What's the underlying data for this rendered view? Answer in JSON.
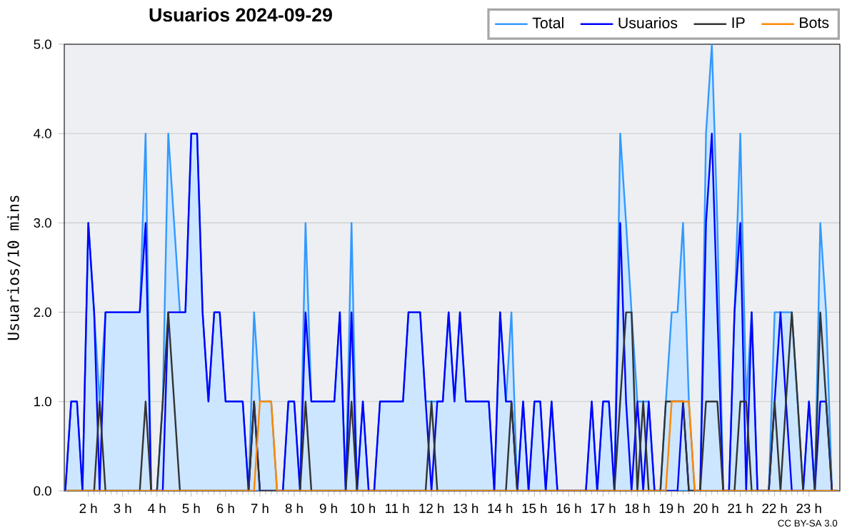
{
  "chart_data": {
    "type": "line",
    "title": "Usuarios  2024-09-29",
    "ylabel": "Usuarios/10 mins",
    "x": [
      1.33,
      1.5,
      1.67,
      1.83,
      2,
      2.17,
      2.33,
      2.5,
      2.67,
      2.83,
      3,
      3.17,
      3.33,
      3.5,
      3.67,
      3.83,
      4,
      4.17,
      4.33,
      4.5,
      4.67,
      4.83,
      5,
      5.17,
      5.33,
      5.5,
      5.67,
      5.83,
      6,
      6.17,
      6.33,
      6.5,
      6.67,
      6.83,
      7,
      7.17,
      7.33,
      7.5,
      7.67,
      7.83,
      8,
      8.17,
      8.33,
      8.5,
      8.67,
      8.83,
      9,
      9.17,
      9.33,
      9.5,
      9.67,
      9.83,
      10,
      10.17,
      10.33,
      10.5,
      10.67,
      10.83,
      11,
      11.17,
      11.33,
      11.5,
      11.67,
      11.83,
      12,
      12.17,
      12.33,
      12.5,
      12.67,
      12.83,
      13,
      13.17,
      13.33,
      13.5,
      13.67,
      13.83,
      14,
      14.17,
      14.33,
      14.5,
      14.67,
      14.83,
      15,
      15.17,
      15.33,
      15.5,
      15.67,
      15.83,
      16,
      16.17,
      16.33,
      16.5,
      16.67,
      16.83,
      17,
      17.17,
      17.33,
      17.5,
      17.67,
      17.83,
      18,
      18.17,
      18.33,
      18.5,
      18.67,
      18.83,
      19,
      19.17,
      19.33,
      19.5,
      19.67,
      19.83,
      20,
      20.17,
      20.33,
      20.5,
      20.67,
      20.83,
      21,
      21.17,
      21.33,
      21.5,
      21.67,
      21.83,
      22,
      22.17,
      22.33,
      22.5,
      22.67,
      22.83,
      23,
      23.17,
      23.33,
      23.5,
      23.67,
      23.83
    ],
    "series": [
      {
        "name": "Total",
        "type": "area",
        "color": "#3399ff",
        "values": [
          0,
          1,
          1,
          0,
          3,
          2,
          1,
          2,
          2,
          2,
          2,
          2,
          2,
          2,
          4,
          0,
          0,
          1,
          4,
          3,
          2,
          2,
          4,
          4,
          2,
          1,
          2,
          2,
          1,
          1,
          1,
          1,
          0,
          2,
          1,
          1,
          1,
          0,
          0,
          1,
          1,
          0,
          3,
          1,
          1,
          1,
          1,
          1,
          2,
          0,
          3,
          0,
          1,
          0,
          0,
          1,
          1,
          1,
          1,
          1,
          2,
          2,
          2,
          1,
          1,
          1,
          1,
          2,
          1,
          2,
          1,
          1,
          1,
          1,
          1,
          0,
          2,
          1,
          2,
          0,
          1,
          0,
          1,
          1,
          0,
          1,
          0,
          0,
          0,
          0,
          0,
          0,
          1,
          0,
          1,
          1,
          0,
          4,
          3,
          2,
          1,
          1,
          1,
          0,
          0,
          1,
          2,
          2,
          3,
          1,
          0,
          0,
          4,
          5,
          3,
          0,
          0,
          2,
          4,
          1,
          2,
          0,
          0,
          0,
          2,
          2,
          2,
          2,
          1,
          0,
          1,
          0,
          3,
          2,
          0,
          0
        ]
      },
      {
        "name": "Usuarios",
        "color": "#0000ff",
        "values": [
          0,
          1,
          1,
          0,
          3,
          2,
          0,
          2,
          2,
          2,
          2,
          2,
          2,
          2,
          3,
          0,
          0,
          0,
          2,
          2,
          2,
          2,
          4,
          4,
          2,
          1,
          2,
          2,
          1,
          1,
          1,
          1,
          0,
          1,
          0,
          0,
          0,
          0,
          0,
          1,
          1,
          0,
          2,
          1,
          1,
          1,
          1,
          1,
          2,
          0,
          2,
          0,
          1,
          0,
          0,
          1,
          1,
          1,
          1,
          1,
          2,
          2,
          2,
          1,
          0,
          1,
          1,
          2,
          1,
          2,
          1,
          1,
          1,
          1,
          1,
          0,
          2,
          1,
          1,
          0,
          1,
          0,
          1,
          1,
          0,
          1,
          0,
          0,
          0,
          0,
          0,
          0,
          1,
          0,
          1,
          1,
          0,
          3,
          1,
          0,
          1,
          0,
          1,
          0,
          0,
          0,
          0,
          0,
          1,
          0,
          0,
          0,
          3,
          4,
          2,
          0,
          0,
          2,
          3,
          0,
          2,
          0,
          0,
          0,
          1,
          2,
          1,
          0,
          0,
          0,
          1,
          0,
          1,
          1,
          0,
          0
        ]
      },
      {
        "name": "IP",
        "color": "#333333",
        "values": [
          0,
          0,
          0,
          0,
          0,
          0,
          1,
          0,
          0,
          0,
          0,
          0,
          0,
          0,
          1,
          0,
          0,
          1,
          2,
          1,
          0,
          0,
          0,
          0,
          0,
          0,
          0,
          0,
          0,
          0,
          0,
          0,
          0,
          1,
          0,
          0,
          0,
          0,
          0,
          0,
          0,
          0,
          1,
          0,
          0,
          0,
          0,
          0,
          0,
          0,
          1,
          0,
          0,
          0,
          0,
          0,
          0,
          0,
          0,
          0,
          0,
          0,
          0,
          0,
          1,
          0,
          0,
          0,
          0,
          0,
          0,
          0,
          0,
          0,
          0,
          0,
          0,
          0,
          1,
          0,
          0,
          0,
          0,
          0,
          0,
          0,
          0,
          0,
          0,
          0,
          0,
          0,
          0,
          0,
          0,
          0,
          0,
          1,
          2,
          2,
          0,
          1,
          0,
          0,
          0,
          1,
          1,
          1,
          1,
          0,
          0,
          0,
          1,
          1,
          1,
          0,
          0,
          0,
          1,
          1,
          0,
          0,
          0,
          0,
          1,
          0,
          1,
          2,
          1,
          0,
          0,
          0,
          2,
          1,
          0,
          0
        ]
      },
      {
        "name": "Bots",
        "color": "#ff8800",
        "values": [
          0,
          0,
          0,
          0,
          0,
          0,
          0,
          0,
          0,
          0,
          0,
          0,
          0,
          0,
          0,
          0,
          0,
          0,
          0,
          0,
          0,
          0,
          0,
          0,
          0,
          0,
          0,
          0,
          0,
          0,
          0,
          0,
          0,
          0,
          1,
          1,
          1,
          0,
          0,
          0,
          0,
          0,
          0,
          0,
          0,
          0,
          0,
          0,
          0,
          0,
          0,
          0,
          0,
          0,
          0,
          0,
          0,
          0,
          0,
          0,
          0,
          0,
          0,
          0,
          0,
          0,
          0,
          0,
          0,
          0,
          0,
          0,
          0,
          0,
          0,
          0,
          0,
          0,
          0,
          0,
          0,
          0,
          0,
          0,
          0,
          0,
          0,
          0,
          0,
          0,
          0,
          0,
          0,
          0,
          0,
          0,
          0,
          0,
          0,
          0,
          0,
          0,
          0,
          0,
          0,
          0,
          1,
          1,
          1,
          1,
          0,
          0,
          0,
          0,
          0,
          0,
          0,
          0,
          0,
          0,
          0,
          0,
          0,
          0,
          0,
          0,
          0,
          0,
          0,
          0,
          0,
          0,
          0,
          0,
          0,
          0
        ]
      }
    ],
    "xlim": [
      1.3,
      23.9
    ],
    "xticks": [
      {
        "value": 2,
        "label": "2 h"
      },
      {
        "value": 3,
        "label": "3 h"
      },
      {
        "value": 4,
        "label": "4 h"
      },
      {
        "value": 5,
        "label": "5 h"
      },
      {
        "value": 6,
        "label": "6 h"
      },
      {
        "value": 7,
        "label": "7 h"
      },
      {
        "value": 8,
        "label": "8 h"
      },
      {
        "value": 9,
        "label": "9 h"
      },
      {
        "value": 10,
        "label": "10 h"
      },
      {
        "value": 11,
        "label": "11 h"
      },
      {
        "value": 12,
        "label": "12 h"
      },
      {
        "value": 13,
        "label": "13 h"
      },
      {
        "value": 14,
        "label": "14 h"
      },
      {
        "value": 15,
        "label": "15 h"
      },
      {
        "value": 16,
        "label": "16 h"
      },
      {
        "value": 17,
        "label": "17 h"
      },
      {
        "value": 18,
        "label": "18 h"
      },
      {
        "value": 19,
        "label": "19 h"
      },
      {
        "value": 20,
        "label": "20 h"
      },
      {
        "value": 21,
        "label": "21 h"
      },
      {
        "value": 22,
        "label": "22 h"
      },
      {
        "value": 23,
        "label": "23 h"
      }
    ],
    "ylim": [
      0,
      5
    ],
    "yticks": [
      {
        "value": 0,
        "label": "0.0"
      },
      {
        "value": 1,
        "label": "1.0"
      },
      {
        "value": 2,
        "label": "2.0"
      },
      {
        "value": 3,
        "label": "3.0"
      },
      {
        "value": 4,
        "label": "4.0"
      },
      {
        "value": 5,
        "label": "5.0"
      }
    ],
    "grid": "y",
    "legend": "top right",
    "annotations": [
      "CC BY-SA 3.0"
    ]
  }
}
